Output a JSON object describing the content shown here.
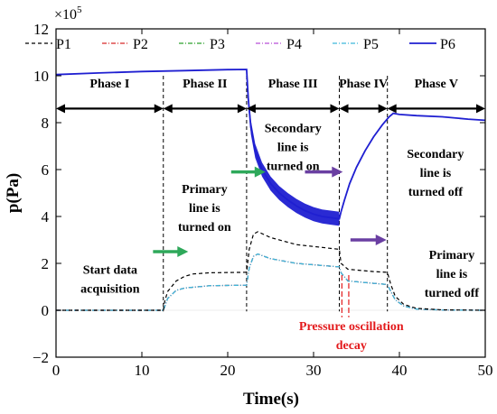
{
  "chart_data": {
    "type": "line",
    "xlabel": "Time(s)",
    "ylabel": "p(Pa)",
    "y_multiplier": "×10",
    "y_multiplier_exp": "5",
    "xlim": [
      0,
      50
    ],
    "ylim": [
      -2,
      12
    ],
    "xticks": [
      "0",
      "10",
      "20",
      "30",
      "40",
      "50"
    ],
    "yticks": [
      "−2",
      "0",
      "2",
      "4",
      "6",
      "8",
      "10",
      "12"
    ],
    "legend_position": "top",
    "series": [
      {
        "name": "P1",
        "color": "#000000",
        "dash": "4,3",
        "width": 1.2,
        "points": [
          [
            0,
            0
          ],
          [
            12.5,
            0
          ],
          [
            12.6,
            0.3
          ],
          [
            13,
            0.8
          ],
          [
            14,
            1.25
          ],
          [
            15,
            1.45
          ],
          [
            16,
            1.55
          ],
          [
            18,
            1.6
          ],
          [
            22.2,
            1.62
          ],
          [
            22.5,
            2.6
          ],
          [
            23,
            3.25
          ],
          [
            23.5,
            3.35
          ],
          [
            25,
            3.1
          ],
          [
            28,
            2.8
          ],
          [
            33,
            2.6
          ],
          [
            33.2,
            2.0
          ],
          [
            34,
            1.75
          ],
          [
            37,
            1.65
          ],
          [
            38.6,
            1.62
          ],
          [
            39,
            1.1
          ],
          [
            39.5,
            0.6
          ],
          [
            40.5,
            0.25
          ],
          [
            42,
            0.08
          ],
          [
            45,
            0.02
          ],
          [
            50,
            0
          ]
        ]
      },
      {
        "name": "P2",
        "color": "#d62728",
        "dash": "5,2,1,2",
        "width": 1.2,
        "points": [
          [
            0,
            0
          ],
          [
            12.5,
            0
          ],
          [
            13,
            0.5
          ],
          [
            14,
            0.85
          ],
          [
            15,
            0.95
          ],
          [
            18,
            1.05
          ],
          [
            22.2,
            1.07
          ],
          [
            22.5,
            1.8
          ],
          [
            23,
            2.3
          ],
          [
            23.5,
            2.4
          ],
          [
            25,
            2.2
          ],
          [
            28,
            2.0
          ],
          [
            33,
            1.85
          ],
          [
            33.2,
            1.6
          ],
          [
            34,
            1.25
          ],
          [
            37,
            1.15
          ],
          [
            38.6,
            1.1
          ],
          [
            39,
            0.8
          ],
          [
            39.5,
            0.45
          ],
          [
            40.5,
            0.18
          ],
          [
            42,
            0.05
          ],
          [
            45,
            0.01
          ],
          [
            50,
            0
          ]
        ]
      },
      {
        "name": "P3",
        "color": "#2ca02c",
        "dash": "5,2,1,2",
        "width": 1.2,
        "points": [
          [
            0,
            0
          ],
          [
            12.5,
            0
          ],
          [
            13,
            0.5
          ],
          [
            14,
            0.85
          ],
          [
            15,
            0.95
          ],
          [
            18,
            1.05
          ],
          [
            22.2,
            1.07
          ],
          [
            22.5,
            1.8
          ],
          [
            23,
            2.3
          ],
          [
            23.5,
            2.4
          ],
          [
            25,
            2.2
          ],
          [
            28,
            2.0
          ],
          [
            33,
            1.85
          ],
          [
            33.2,
            1.6
          ],
          [
            34,
            1.25
          ],
          [
            37,
            1.15
          ],
          [
            38.6,
            1.1
          ],
          [
            39,
            0.8
          ],
          [
            39.5,
            0.45
          ],
          [
            40.5,
            0.18
          ],
          [
            42,
            0.05
          ],
          [
            45,
            0.01
          ],
          [
            50,
            0
          ]
        ]
      },
      {
        "name": "P4",
        "color": "#b84fd6",
        "dash": "5,2,1,2",
        "width": 1.2,
        "points": [
          [
            0,
            0
          ],
          [
            12.5,
            0
          ],
          [
            13,
            0.5
          ],
          [
            14,
            0.85
          ],
          [
            15,
            0.95
          ],
          [
            18,
            1.05
          ],
          [
            22.2,
            1.07
          ],
          [
            22.5,
            1.8
          ],
          [
            23,
            2.3
          ],
          [
            23.5,
            2.4
          ],
          [
            25,
            2.2
          ],
          [
            28,
            2.0
          ],
          [
            33,
            1.85
          ],
          [
            33.2,
            1.6
          ],
          [
            34,
            1.25
          ],
          [
            37,
            1.15
          ],
          [
            38.6,
            1.1
          ],
          [
            39,
            0.8
          ],
          [
            39.5,
            0.45
          ],
          [
            40.5,
            0.18
          ],
          [
            42,
            0.05
          ],
          [
            45,
            0.01
          ],
          [
            50,
            0
          ]
        ]
      },
      {
        "name": "P5",
        "color": "#3fb8d9",
        "dash": "5,2,1,2",
        "width": 1.3,
        "points": [
          [
            0,
            0
          ],
          [
            12.5,
            0
          ],
          [
            13,
            0.5
          ],
          [
            14,
            0.85
          ],
          [
            15,
            0.95
          ],
          [
            18,
            1.05
          ],
          [
            22.2,
            1.07
          ],
          [
            22.5,
            1.8
          ],
          [
            23,
            2.3
          ],
          [
            23.5,
            2.4
          ],
          [
            25,
            2.2
          ],
          [
            28,
            2.0
          ],
          [
            33,
            1.85
          ],
          [
            33.2,
            1.6
          ],
          [
            34,
            1.25
          ],
          [
            37,
            1.15
          ],
          [
            38.6,
            1.1
          ],
          [
            39,
            0.8
          ],
          [
            39.5,
            0.45
          ],
          [
            40.5,
            0.18
          ],
          [
            42,
            0.05
          ],
          [
            45,
            0.01
          ],
          [
            50,
            0
          ]
        ]
      },
      {
        "name": "P6",
        "color": "#1f1fd1",
        "dash": "",
        "width": 1.8,
        "points": [
          [
            0,
            10.05
          ],
          [
            5,
            10.12
          ],
          [
            10,
            10.18
          ],
          [
            15,
            10.22
          ],
          [
            20,
            10.26
          ],
          [
            22.2,
            10.27
          ],
          [
            22.4,
            9.0
          ],
          [
            22.7,
            7.8
          ],
          [
            23.2,
            6.8
          ],
          [
            24,
            6.0
          ],
          [
            25,
            5.4
          ],
          [
            26,
            5.0
          ],
          [
            27,
            4.7
          ],
          [
            28,
            4.45
          ],
          [
            29,
            4.25
          ],
          [
            30,
            4.1
          ],
          [
            31,
            4.0
          ],
          [
            32,
            3.95
          ],
          [
            33,
            3.9
          ],
          [
            33.2,
            4.2
          ],
          [
            33.6,
            4.7
          ],
          [
            34.2,
            5.4
          ],
          [
            35,
            6.1
          ],
          [
            36,
            6.8
          ],
          [
            37,
            7.4
          ],
          [
            38,
            7.9
          ],
          [
            38.8,
            8.25
          ],
          [
            39.3,
            8.4
          ],
          [
            40,
            8.35
          ],
          [
            42,
            8.3
          ],
          [
            45,
            8.25
          ],
          [
            48,
            8.15
          ],
          [
            50,
            8.1
          ]
        ],
        "band": {
          "x_start": 22.3,
          "x_end": 33.1,
          "half_width": 0.3
        }
      }
    ],
    "phase_boundaries": [
      12.5,
      22.2,
      33,
      38.6
    ],
    "phases": [
      {
        "label": "Phase I",
        "x_start": 0,
        "x_end": 12.5
      },
      {
        "label": "Phase II",
        "x_start": 12.5,
        "x_end": 22.2
      },
      {
        "label": "Phase III",
        "x_start": 22.2,
        "x_end": 33
      },
      {
        "label": "Phase IV",
        "x_start": 33,
        "x_end": 38.6
      },
      {
        "label": "Phase V",
        "x_start": 38.6,
        "x_end": 50
      }
    ],
    "phase_arrow_y": 8.6,
    "annotations": [
      {
        "lines": [
          "Start data",
          "acquisition"
        ],
        "x": 6.3,
        "y": 1.55,
        "color": "#000000"
      },
      {
        "lines": [
          "Primary",
          "line is",
          "turned on"
        ],
        "x": 17.3,
        "y": 5.0,
        "color": "#000000"
      },
      {
        "lines": [
          "Secondary",
          "line is",
          "turned on"
        ],
        "x": 27.6,
        "y": 7.6,
        "color": "#000000"
      },
      {
        "lines": [
          "Secondary",
          "line is",
          "turned off"
        ],
        "x": 44.2,
        "y": 6.5,
        "color": "#000000"
      },
      {
        "lines": [
          "Primary",
          "line is",
          "turned off"
        ],
        "x": 46.1,
        "y": 2.2,
        "color": "#000000"
      },
      {
        "lines": [
          "Pressure oscillation",
          "decay"
        ],
        "x": 34.4,
        "y": -0.85,
        "color": "#e31a1c"
      }
    ],
    "marker_arrows": [
      {
        "x1": 11.3,
        "x2": 15.4,
        "y": 2.5,
        "color": "#2ea85a"
      },
      {
        "x1": 20.4,
        "x2": 24.4,
        "y": 5.9,
        "color": "#2ea85a"
      },
      {
        "x1": 29.0,
        "x2": 33.4,
        "y": 5.9,
        "color": "#6a3fa2"
      },
      {
        "x1": 34.3,
        "x2": 38.5,
        "y": 3.0,
        "color": "#6a3fa2"
      }
    ],
    "oscillation_markers": {
      "x": [
        33.3,
        34.1
      ],
      "y_top": 1.5,
      "y_bottom": -0.3,
      "color": "#e31a1c"
    }
  }
}
